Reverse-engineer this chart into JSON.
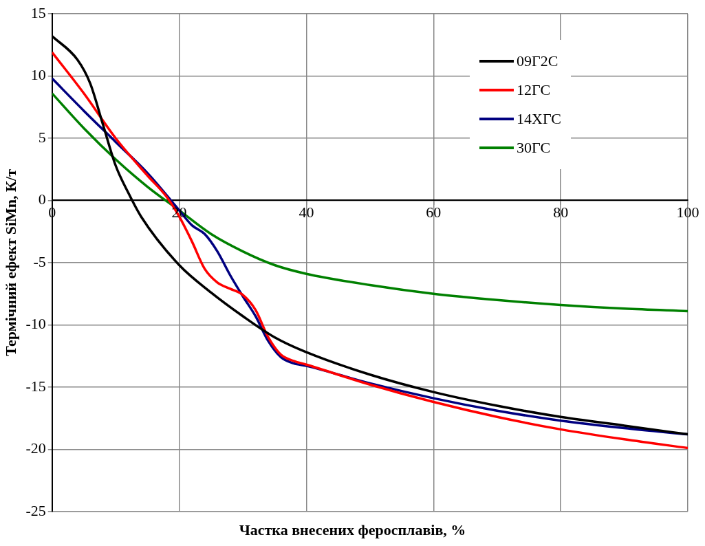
{
  "chart_data": {
    "type": "line",
    "xlabel": "Частка внесених феросплавів, %",
    "ylabel": "Термічний ефект SiMn, К/т",
    "xlim": [
      0,
      100
    ],
    "xticks": [
      0,
      20,
      40,
      60,
      80,
      100
    ],
    "ylim": [
      -25,
      15
    ],
    "yticks": [
      -25,
      -20,
      -15,
      -10,
      -5,
      0,
      5,
      10,
      15
    ],
    "grid": true,
    "legend": "top right",
    "marker": "none",
    "line_style": "solid",
    "series": [
      {
        "name": "09Г2С",
        "color": "#000000",
        "x": [
          0,
          4,
          6,
          8,
          10,
          12,
          14,
          20,
          25,
          30,
          35,
          40,
          50,
          60,
          70,
          80,
          90,
          100
        ],
        "values": [
          13.2,
          11.3,
          9.4,
          6.1,
          2.8,
          0.6,
          -1.3,
          -5.2,
          -7.4,
          -9.3,
          -11.0,
          -12.2,
          -14.0,
          -15.4,
          -16.5,
          -17.4,
          -18.1,
          -18.8
        ]
      },
      {
        "name": "12ГС",
        "color": "#ff0000",
        "x": [
          0,
          5,
          10,
          15,
          18,
          20,
          22,
          24,
          26,
          28,
          30,
          32,
          34,
          36,
          38,
          40,
          50,
          60,
          70,
          80,
          90,
          100
        ],
        "values": [
          11.9,
          8.6,
          5.0,
          2.0,
          0.3,
          -1.3,
          -3.3,
          -5.5,
          -6.6,
          -7.1,
          -7.6,
          -8.8,
          -11.0,
          -12.4,
          -12.9,
          -13.2,
          -14.8,
          -16.2,
          -17.4,
          -18.4,
          -19.2,
          -19.9
        ]
      },
      {
        "name": "14ХГС",
        "color": "#000080",
        "x": [
          0,
          5,
          10,
          15,
          20,
          22,
          24,
          26,
          28,
          30,
          32,
          34,
          36,
          38,
          40,
          50,
          60,
          70,
          80,
          90,
          100
        ],
        "values": [
          9.8,
          7.2,
          4.7,
          2.2,
          -0.8,
          -2.0,
          -2.7,
          -4.1,
          -6.0,
          -7.7,
          -9.3,
          -11.3,
          -12.6,
          -13.1,
          -13.3,
          -14.7,
          -15.9,
          -16.9,
          -17.7,
          -18.3,
          -18.8
        ]
      },
      {
        "name": "30ГС",
        "color": "#008000",
        "x": [
          0,
          5,
          10,
          15,
          20,
          25,
          30,
          35,
          40,
          50,
          60,
          70,
          80,
          90,
          100
        ],
        "values": [
          8.6,
          5.8,
          3.3,
          1.1,
          -0.8,
          -2.7,
          -4.1,
          -5.2,
          -5.9,
          -6.8,
          -7.5,
          -8.0,
          -8.4,
          -8.7,
          -8.9
        ]
      }
    ]
  }
}
